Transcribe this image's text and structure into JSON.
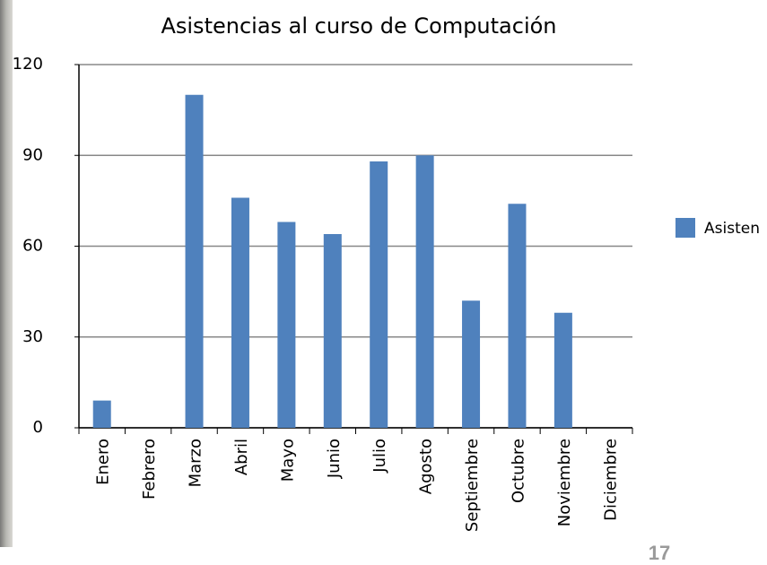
{
  "chart_data": {
    "type": "bar",
    "title": "Asistencias al curso de Computación",
    "categories": [
      "Enero",
      "Febrero",
      "Marzo",
      "Abril",
      "Mayo",
      "Junio",
      "Julio",
      "Agosto",
      "Septiembre",
      "Octubre",
      "Noviembre",
      "Diciembre"
    ],
    "series": [
      {
        "name": "Asisten",
        "color": "#4f81bd",
        "values": [
          9,
          0,
          110,
          76,
          68,
          64,
          88,
          90,
          42,
          74,
          38,
          0
        ]
      }
    ],
    "ylim": [
      0,
      120
    ],
    "yticks": [
      0,
      30,
      60,
      90,
      120
    ],
    "grid": true,
    "legend": "right"
  },
  "page_number": "17"
}
